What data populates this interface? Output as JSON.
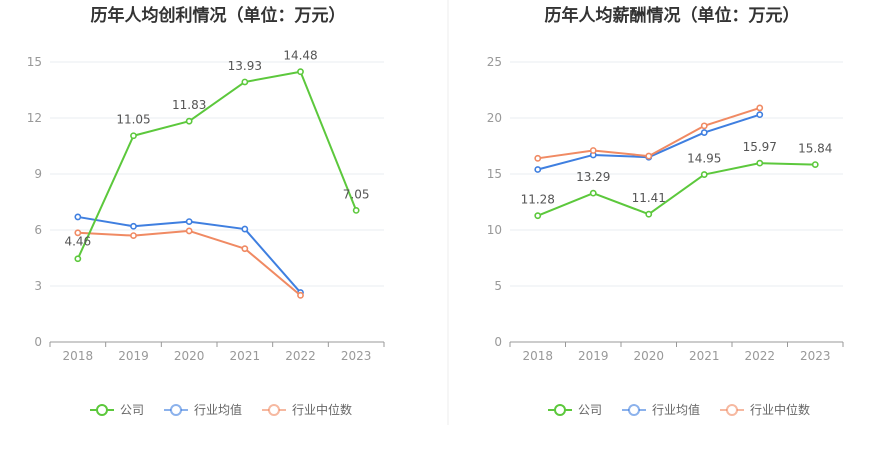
{
  "colors": {
    "company": "#5cc83c",
    "industry_avg": "#3f7fe0",
    "industry_median": "#f08a63",
    "grid": "#e8ecf2",
    "axis": "#999999"
  },
  "chart_data": [
    {
      "type": "line",
      "title": "历年人均创利情况（单位：万元）",
      "categories": [
        "2018",
        "2019",
        "2020",
        "2021",
        "2022",
        "2023"
      ],
      "ylim": [
        0,
        15
      ],
      "yticks": [
        0,
        3,
        6,
        9,
        12,
        15
      ],
      "grid": true,
      "legend": "bottom",
      "series": [
        {
          "name": "公司",
          "key": "company",
          "values": [
            4.46,
            11.05,
            11.83,
            13.93,
            14.48,
            7.05
          ],
          "labels": [
            "4.46",
            "11.05",
            "11.83",
            "13.93",
            "14.48",
            "7.05"
          ]
        },
        {
          "name": "行业均值",
          "key": "industry_avg",
          "values": [
            6.7,
            6.2,
            6.45,
            6.05,
            2.65,
            null
          ]
        },
        {
          "name": "行业中位数",
          "key": "industry_median",
          "values": [
            5.85,
            5.7,
            5.95,
            5.0,
            2.5,
            null
          ]
        }
      ]
    },
    {
      "type": "line",
      "title": "历年人均薪酬情况（单位：万元）",
      "categories": [
        "2018",
        "2019",
        "2020",
        "2021",
        "2022",
        "2023"
      ],
      "ylim": [
        0,
        25
      ],
      "yticks": [
        0,
        5,
        10,
        15,
        20,
        25
      ],
      "grid": true,
      "legend": "bottom",
      "series": [
        {
          "name": "公司",
          "key": "company",
          "values": [
            11.28,
            13.29,
            11.41,
            14.95,
            15.97,
            15.84
          ],
          "labels": [
            "11.28",
            "13.29",
            "11.41",
            "14.95",
            "15.97",
            "15.84"
          ]
        },
        {
          "name": "行业均值",
          "key": "industry_avg",
          "values": [
            15.4,
            16.7,
            16.5,
            18.7,
            20.3,
            null
          ]
        },
        {
          "name": "行业中位数",
          "key": "industry_median",
          "values": [
            16.4,
            17.1,
            16.6,
            19.3,
            20.9,
            null
          ]
        }
      ]
    }
  ]
}
